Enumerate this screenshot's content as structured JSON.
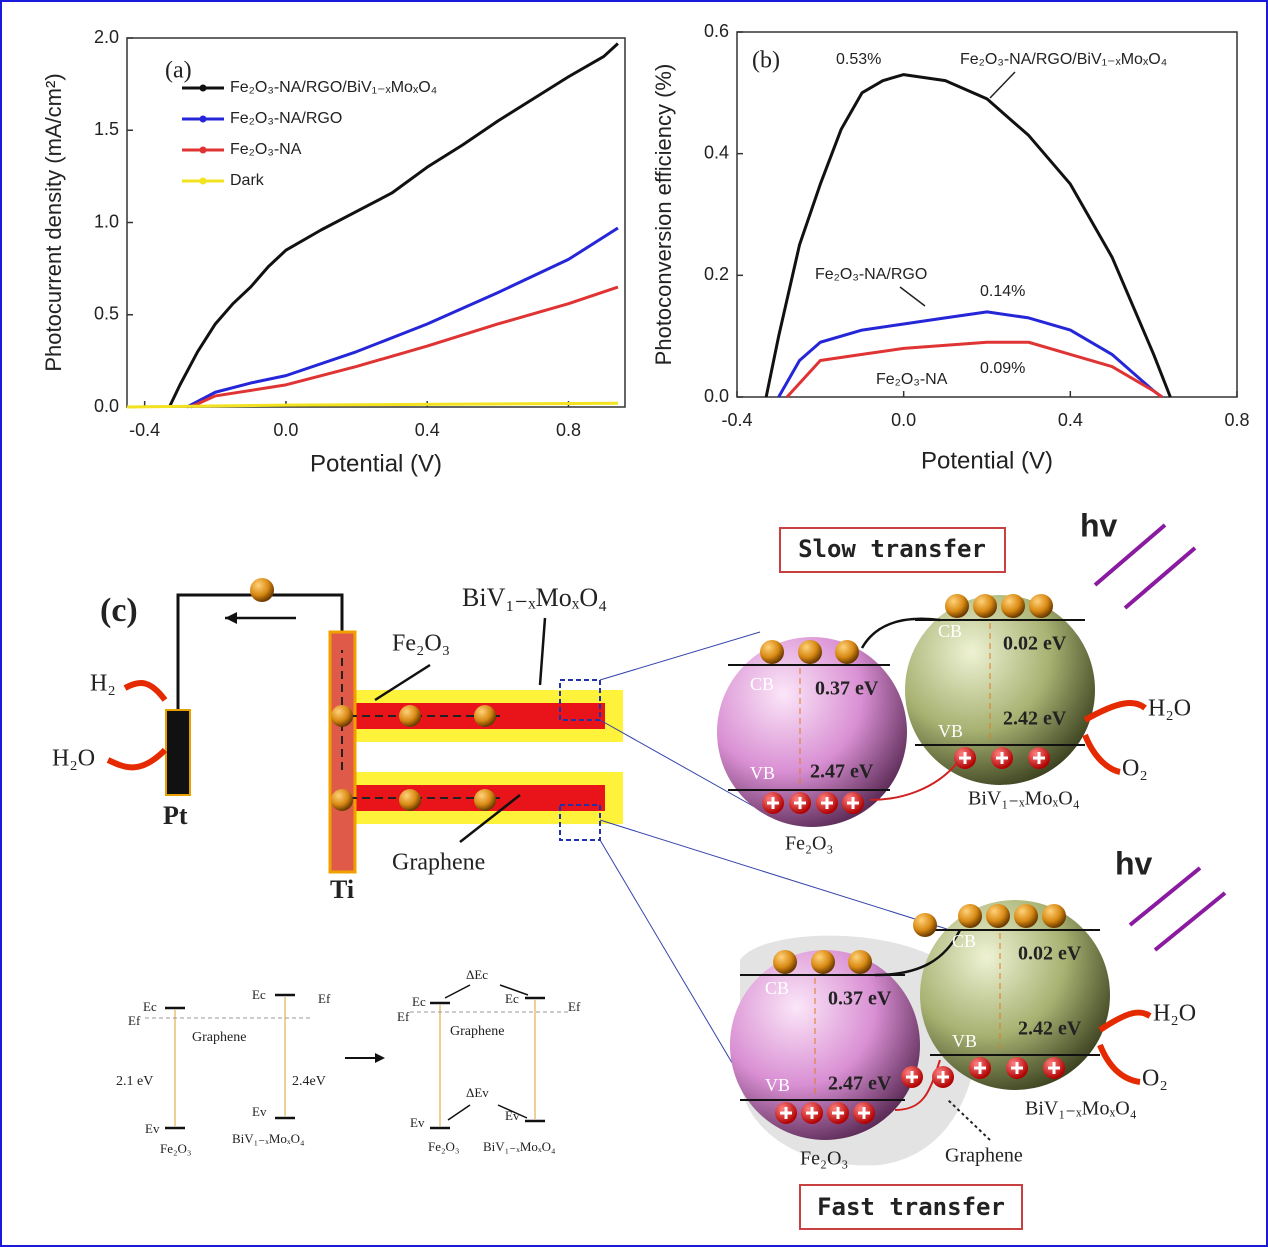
{
  "chart_data": [
    {
      "type": "line",
      "panel_label": "(a)",
      "x_label": "Potential (V)",
      "y_label": "Photocurrent density (mA/cm²)",
      "xlim": [
        -0.45,
        0.96
      ],
      "ylim": [
        0,
        2.0
      ],
      "xticks": [
        -0.4,
        {
          "value": 0,
          "label": "0.0"
        },
        0.4,
        0.8
      ],
      "yticks": [
        {
          "value": 0,
          "label": "0.0"
        },
        0.5,
        {
          "value": 1,
          "label": "1.0"
        },
        1.5,
        {
          "value": 2,
          "label": "2.0"
        }
      ],
      "legend": "upper left",
      "series": [
        {
          "name": "Fe₂O₃-NA/RGO/BiV₁₋ₓMoₓO₄",
          "color": "#111111",
          "x": [
            -0.33,
            -0.3,
            -0.25,
            -0.2,
            -0.15,
            -0.1,
            -0.05,
            0.0,
            0.1,
            0.2,
            0.3,
            0.4,
            0.5,
            0.6,
            0.7,
            0.8,
            0.9,
            0.94
          ],
          "values": [
            0,
            0.12,
            0.3,
            0.45,
            0.56,
            0.65,
            0.76,
            0.85,
            0.96,
            1.06,
            1.16,
            1.3,
            1.42,
            1.55,
            1.67,
            1.79,
            1.9,
            1.97
          ]
        },
        {
          "name": "Fe₂O₃-NA/RGO",
          "color": "#2626d9",
          "x": [
            -0.28,
            -0.2,
            -0.1,
            0.0,
            0.2,
            0.4,
            0.6,
            0.8,
            0.94
          ],
          "values": [
            0,
            0.08,
            0.13,
            0.17,
            0.3,
            0.45,
            0.62,
            0.8,
            0.97
          ]
        },
        {
          "name": "Fe₂O₃-NA",
          "color": "#e03333",
          "x": [
            -0.27,
            -0.2,
            0.0,
            0.2,
            0.4,
            0.6,
            0.8,
            0.94
          ],
          "values": [
            0,
            0.06,
            0.12,
            0.22,
            0.33,
            0.45,
            0.56,
            0.65
          ]
        },
        {
          "name": "Dark",
          "color": "#f2e21f",
          "x": [
            -0.45,
            0.0,
            0.94
          ],
          "values": [
            0,
            0.01,
            0.02
          ]
        }
      ]
    },
    {
      "type": "line",
      "panel_label": "(b)",
      "x_label": "Potential (V)",
      "y_label": "Photoconversion efficiency (%)",
      "xlim": [
        -0.4,
        0.8
      ],
      "ylim": [
        0,
        0.6
      ],
      "xticks": [
        -0.4,
        {
          "value": 0,
          "label": "0.0"
        },
        0.4,
        0.8
      ],
      "yticks": [
        {
          "value": 0,
          "label": "0.0"
        },
        0.2,
        0.4,
        0.6
      ],
      "annotations": [
        "0.53%",
        "Fe₂O₃-NA/RGO/BiV₁₋ₓMoₓO₄",
        "Fe₂O₃-NA/RGO",
        "0.14%",
        "Fe₂O₃-NA",
        "0.09%"
      ],
      "series": [
        {
          "color": "#111111",
          "x": [
            -0.33,
            -0.3,
            -0.25,
            -0.2,
            -0.15,
            -0.1,
            -0.05,
            0.0,
            0.1,
            0.2,
            0.3,
            0.4,
            0.5,
            0.6,
            0.64
          ],
          "values": [
            0,
            0.1,
            0.25,
            0.35,
            0.44,
            0.5,
            0.52,
            0.53,
            0.52,
            0.49,
            0.43,
            0.35,
            0.23,
            0.07,
            0
          ]
        },
        {
          "color": "#2626d9",
          "x": [
            -0.3,
            -0.25,
            -0.2,
            -0.1,
            0.0,
            0.1,
            0.2,
            0.3,
            0.4,
            0.5,
            0.6,
            0.62
          ],
          "values": [
            0,
            0.06,
            0.09,
            0.11,
            0.12,
            0.13,
            0.14,
            0.13,
            0.11,
            0.07,
            0.01,
            0
          ]
        },
        {
          "color": "#e03333",
          "x": [
            -0.28,
            -0.2,
            -0.1,
            0.0,
            0.2,
            0.3,
            0.4,
            0.5,
            0.6,
            0.62
          ],
          "values": [
            0,
            0.06,
            0.07,
            0.08,
            0.09,
            0.09,
            0.07,
            0.05,
            0.01,
            0
          ]
        }
      ]
    }
  ],
  "diagram": {
    "labels": [
      "(c)",
      "BiV₁₋ₓMoₓO₄",
      "Fe₂O₃",
      "H₂",
      "H₂O",
      "Pt",
      "Ti",
      "Graphene",
      "Slow transfer",
      "hv",
      "CB",
      "0.37 eV",
      "VB",
      "2.47 eV",
      "Fe₂O₃",
      "CB",
      "0.02 eV",
      "VB",
      "2.42 eV",
      "H₂O",
      "O₂",
      "BiV₁₋ₓMoₓO₄",
      "hv",
      "CB",
      "0.37 eV",
      "VB",
      "2.47 eV",
      "Fe₂O₃",
      "CB",
      "0.02 eV",
      "VB",
      "2.42 eV",
      "H₂O",
      "O₂",
      "BiV₁₋ₓMoₓO₄",
      "Graphene",
      "Fast transfer",
      "Ef",
      "Ec",
      "Graphene",
      "2.1 eV",
      "Ev",
      "Fe₂O₃",
      "Ec",
      "Ef",
      "2.4eV",
      "Ev",
      "BiV₁₋ₓMoₓO₄",
      "ΔEc",
      "Ef",
      "Ec",
      "Ec",
      "Ef",
      "Graphene",
      "ΔEv",
      "Ev",
      "Ev",
      "Fe₂O₃",
      "BiV₁₋ₓMoₓO₄"
    ]
  }
}
